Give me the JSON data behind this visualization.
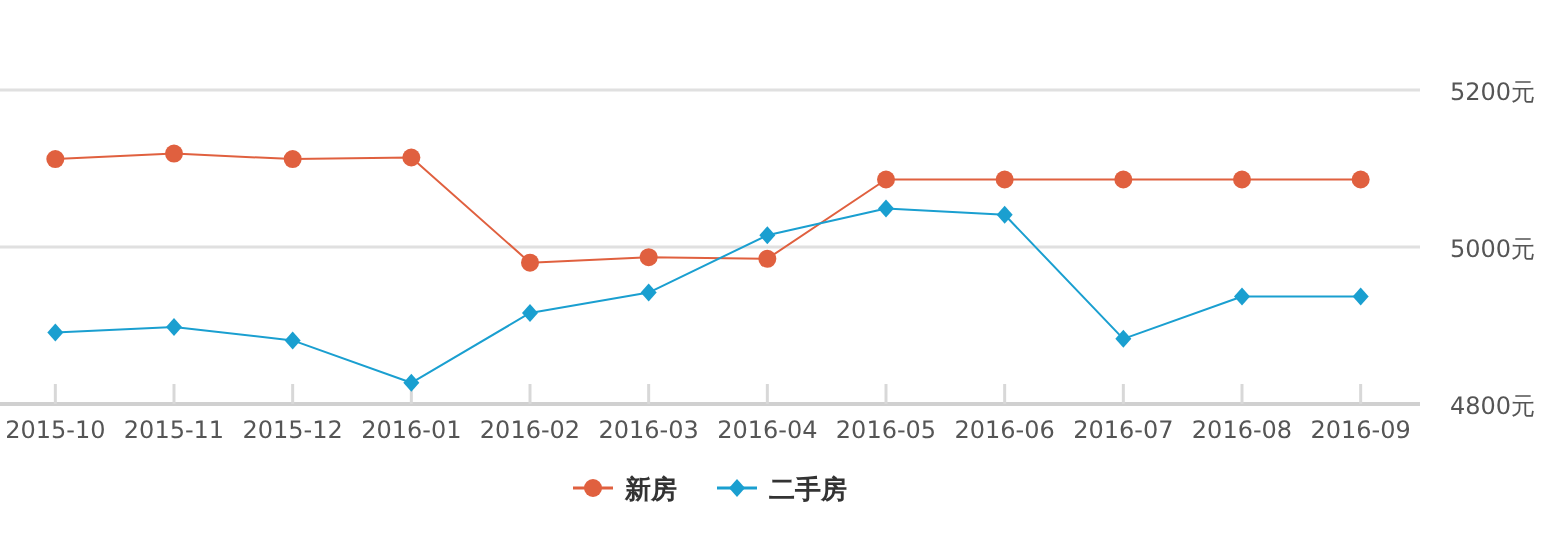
{
  "chart_data": {
    "type": "line",
    "categories": [
      "2015-10",
      "2015-11",
      "2015-12",
      "2016-01",
      "2016-02",
      "2016-03",
      "2016-04",
      "2016-05",
      "2016-06",
      "2016-07",
      "2016-08",
      "2016-09"
    ],
    "series": [
      {
        "name": "新房",
        "color": "#e0603f",
        "marker": "circle",
        "values": [
          5112,
          5119,
          5112,
          5114,
          4980,
          4987,
          4985,
          5086,
          5086,
          5086,
          5086,
          5086
        ]
      },
      {
        "name": "二手房",
        "color": "#1a9fd0",
        "marker": "diamond",
        "values": [
          4891,
          4898,
          4881,
          4827,
          4916,
          4942,
          5015,
          5049,
          5041,
          4883,
          4937,
          4937
        ]
      }
    ],
    "ylim": [
      4800,
      5200
    ],
    "yticks": [
      {
        "value": 4800,
        "label": "4800元"
      },
      {
        "value": 5000,
        "label": "5000元"
      },
      {
        "value": 5200,
        "label": "5200元"
      }
    ],
    "grid": "y",
    "legend": "bottom",
    "line_style": "solid"
  }
}
